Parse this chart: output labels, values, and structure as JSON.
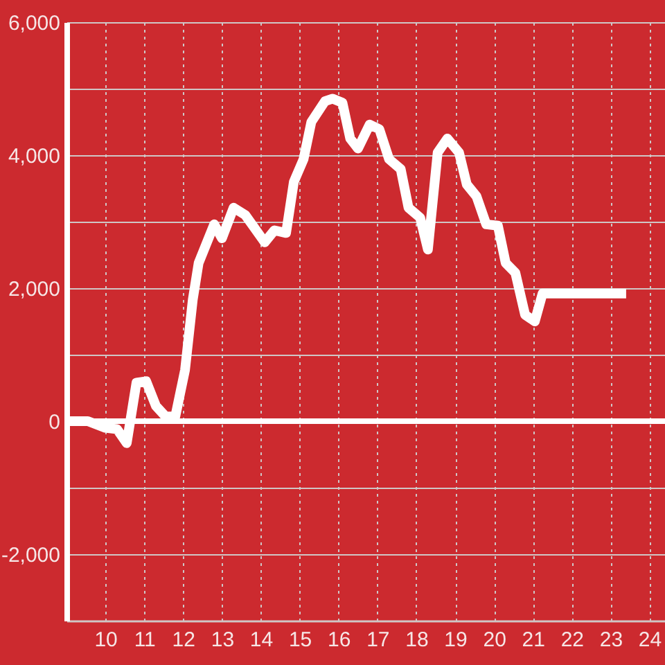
{
  "chart_data": {
    "type": "line",
    "x": [
      9.0,
      9.55,
      10.0,
      10.3,
      10.55,
      10.8,
      11.05,
      11.3,
      11.55,
      11.8,
      12.05,
      12.25,
      12.4,
      12.8,
      13.0,
      13.3,
      13.6,
      14.1,
      14.35,
      14.65,
      14.85,
      15.1,
      15.3,
      15.65,
      15.85,
      16.1,
      16.3,
      16.5,
      16.8,
      17.05,
      17.3,
      17.6,
      17.8,
      18.1,
      18.3,
      18.55,
      18.8,
      19.1,
      19.3,
      19.55,
      19.8,
      20.1,
      20.3,
      20.55,
      20.8,
      21.05,
      21.25,
      23.4
    ],
    "values": [
      0,
      0,
      -100,
      -120,
      -330,
      580,
      600,
      230,
      70,
      70,
      770,
      1830,
      2380,
      2960,
      2750,
      3210,
      3100,
      2690,
      2870,
      2830,
      3600,
      3940,
      4500,
      4810,
      4850,
      4790,
      4250,
      4100,
      4460,
      4390,
      3940,
      3790,
      3210,
      3060,
      2580,
      4040,
      4250,
      4040,
      3560,
      3380,
      2960,
      2940,
      2380,
      2230,
      1600,
      1500,
      1920,
      1920
    ],
    "color": "#ffffff",
    "xlim": [
      9,
      24.4
    ],
    "xticks": [
      10,
      11,
      12,
      13,
      14,
      15,
      16,
      17,
      18,
      19,
      20,
      21,
      22,
      23,
      24
    ],
    "ylim": [
      -3000,
      6000
    ],
    "yticks": [
      {
        "value": -2000,
        "label": "-2,000"
      },
      {
        "value": -1000,
        "label": null
      },
      {
        "value": 0,
        "label": "0"
      },
      {
        "value": 1000,
        "label": null
      },
      {
        "value": 2000,
        "label": "2,000"
      },
      {
        "value": 3000,
        "label": null
      },
      {
        "value": 4000,
        "label": "4,000"
      },
      {
        "value": 5000,
        "label": null
      },
      {
        "value": 6000,
        "label": "6,000"
      }
    ],
    "grid": true,
    "line_style": "solid",
    "ref_lines": [
      {
        "axis": "y",
        "value": 0,
        "color": "#ffffff"
      }
    ]
  }
}
